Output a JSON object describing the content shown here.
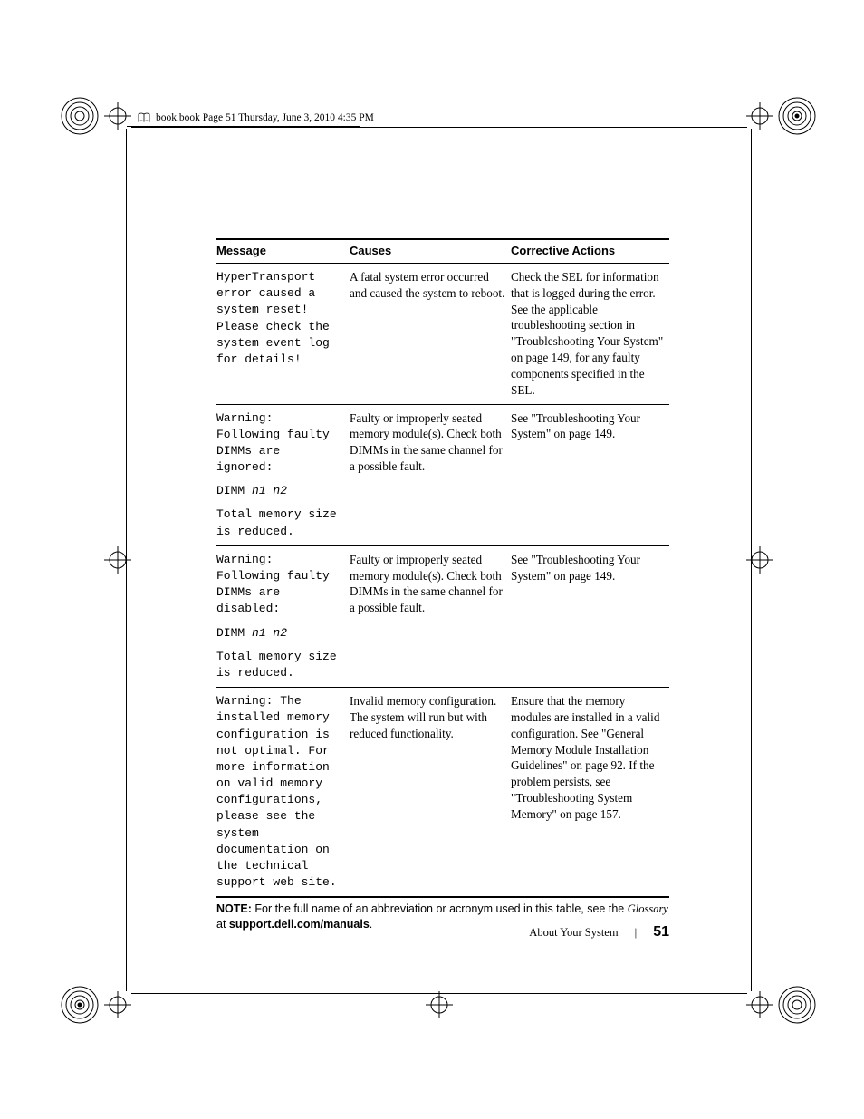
{
  "header": {
    "path_text": "book.book  Page 51  Thursday, June 3, 2010  4:35 PM"
  },
  "table": {
    "headers": {
      "message": "Message",
      "causes": "Causes",
      "corrective": "Corrective Actions"
    },
    "rows": [
      {
        "message_lines": [
          "HyperTransport",
          "error caused a",
          "system reset!",
          "Please check the",
          "system event log",
          "for details!"
        ],
        "cause": "A fatal system error occurred and caused the system to reboot.",
        "corrective": "Check the SEL for information that is logged during the error. See the applicable troubleshooting section in \"Troubleshooting Your System\" on page 149, for any faulty components specified in the SEL."
      },
      {
        "message_blocks": [
          [
            "Warning:",
            "Following faulty",
            "DIMMs are",
            "ignored:"
          ],
          [
            "DIMM ",
            {
              "ital": "n1 n2"
            }
          ],
          [
            "Total memory size",
            "is reduced."
          ]
        ],
        "cause": "Faulty or improperly seated memory module(s). Check both DIMMs in the same channel for a possible fault.",
        "corrective": "See \"Troubleshooting Your System\" on page 149."
      },
      {
        "message_blocks": [
          [
            "Warning:",
            "Following faulty",
            "DIMMs are",
            "disabled:"
          ],
          [
            "DIMM ",
            {
              "ital": "n1 n2"
            }
          ],
          [
            "Total memory size",
            "is reduced."
          ]
        ],
        "cause": "Faulty or improperly seated memory module(s). Check both DIMMs in the same channel for a possible fault.",
        "corrective": "See \"Troubleshooting Your System\" on page 149."
      },
      {
        "message_lines": [
          "Warning: The",
          "installed memory",
          "configuration is",
          "not optimal. For",
          "more information",
          "on valid memory",
          "configurations,",
          "please see the",
          "system",
          "documentation on",
          "the technical",
          "support web site."
        ],
        "cause": "Invalid memory configuration. The system will run but with reduced functionality.",
        "corrective": "Ensure that the memory modules are installed in a valid configuration. See \"General Memory Module Installation Guidelines\" on page 92. If the problem persists, see \"Troubleshooting System Memory\" on page 157."
      }
    ]
  },
  "note": {
    "label": "NOTE:",
    "text_before": " For the full name of an abbreviation or acronym used in this table, see the ",
    "glossary": "Glossary",
    "text_mid": " at ",
    "url": "support.dell.com/manuals",
    "text_after": "."
  },
  "footer": {
    "section": "About Your System",
    "page": "51"
  }
}
